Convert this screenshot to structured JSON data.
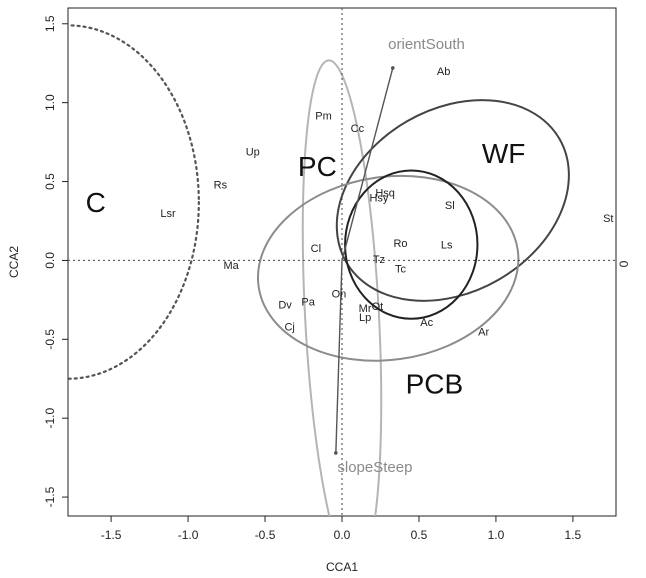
{
  "chart_data": {
    "type": "scatter",
    "xlabel": "CCA1",
    "ylabel": "CCA2",
    "right_axis_label": "0",
    "xlim": [
      -1.78,
      1.78
    ],
    "ylim": [
      -1.62,
      1.6
    ],
    "xticks": [
      -1.5,
      -1.0,
      -0.5,
      0.0,
      0.5,
      1.0,
      1.5
    ],
    "yticks": [
      -1.5,
      -1.0,
      -0.5,
      0.0,
      0.5,
      1.0,
      1.5
    ],
    "xtick_labels": [
      "-1.5",
      "-1.0",
      "-0.5",
      "0.0",
      "0.5",
      "1.0",
      "1.5"
    ],
    "ytick_labels": [
      "-1.5",
      "-1.0",
      "-0.5",
      "0.0",
      "0.5",
      "1.0",
      "1.5"
    ],
    "species": [
      {
        "label": "Ab",
        "x": 0.66,
        "y": 1.2
      },
      {
        "label": "Pm",
        "x": -0.12,
        "y": 0.92
      },
      {
        "label": "Cc",
        "x": 0.1,
        "y": 0.84
      },
      {
        "label": "Up",
        "x": -0.58,
        "y": 0.69
      },
      {
        "label": "Rs",
        "x": -0.79,
        "y": 0.48
      },
      {
        "label": "Lsr",
        "x": -1.13,
        "y": 0.3
      },
      {
        "label": "Hsq",
        "x": 0.28,
        "y": 0.43
      },
      {
        "label": "Hsy",
        "x": 0.24,
        "y": 0.4
      },
      {
        "label": "Sl",
        "x": 0.7,
        "y": 0.35
      },
      {
        "label": "St",
        "x": 1.73,
        "y": 0.27
      },
      {
        "label": "Cl",
        "x": -0.17,
        "y": 0.08
      },
      {
        "label": "Ro",
        "x": 0.38,
        "y": 0.11
      },
      {
        "label": "Ls",
        "x": 0.68,
        "y": 0.1
      },
      {
        "label": "Tz",
        "x": 0.24,
        "y": 0.01
      },
      {
        "label": "Tc",
        "x": 0.38,
        "y": -0.05
      },
      {
        "label": "Ma",
        "x": -0.72,
        "y": -0.03
      },
      {
        "label": "On",
        "x": -0.02,
        "y": -0.21
      },
      {
        "label": "Pa",
        "x": -0.22,
        "y": -0.26
      },
      {
        "label": "Dv",
        "x": -0.37,
        "y": -0.28
      },
      {
        "label": "Mr",
        "x": 0.15,
        "y": -0.3
      },
      {
        "label": "Ot",
        "x": 0.23,
        "y": -0.29
      },
      {
        "label": "Lp",
        "x": 0.15,
        "y": -0.36
      },
      {
        "label": "Cj",
        "x": -0.34,
        "y": -0.42
      },
      {
        "label": "Ac",
        "x": 0.55,
        "y": -0.39
      },
      {
        "label": "Ar",
        "x": 0.92,
        "y": -0.45
      }
    ],
    "environmental_vectors": [
      {
        "label": "orientSouth",
        "end": [
          0.33,
          1.22
        ],
        "label_pos": [
          0.3,
          1.34
        ]
      },
      {
        "label": "slopeSteep",
        "end": [
          -0.04,
          -1.22
        ],
        "label_pos": [
          -0.03,
          -1.34
        ]
      }
    ],
    "groups": [
      {
        "label": "C",
        "label_pos": [
          -1.6,
          0.37
        ],
        "style": "dotted",
        "color": "#555555",
        "ellipse": {
          "cx": -1.78,
          "cy": 0.37,
          "rx": 0.85,
          "ry": 1.12,
          "angle": 0
        }
      },
      {
        "label": "PC",
        "label_pos": [
          -0.16,
          0.6
        ],
        "style": "solid",
        "color": "#b5b5b5",
        "ellipse": {
          "cx": 0.0,
          "cy": -0.35,
          "rx": 0.24,
          "ry": 1.62,
          "angle": 3
        }
      },
      {
        "label": "WF",
        "label_pos": [
          1.05,
          0.68
        ],
        "style": "solid",
        "color": "#444444",
        "ellipse": {
          "cx": 0.72,
          "cy": 0.38,
          "rx": 0.8,
          "ry": 0.58,
          "angle": 30
        }
      },
      {
        "label": "PCB",
        "label_pos": [
          0.6,
          -0.78
        ],
        "style": "solid",
        "color": "#8c8c8c",
        "ellipse": {
          "cx": 0.3,
          "cy": -0.05,
          "rx": 0.85,
          "ry": 0.58,
          "angle": 8
        }
      },
      {
        "label": "",
        "style": "solid",
        "color": "#222222",
        "ellipse": {
          "cx": 0.45,
          "cy": 0.1,
          "rx": 0.43,
          "ry": 0.47,
          "angle": 0
        }
      }
    ]
  }
}
